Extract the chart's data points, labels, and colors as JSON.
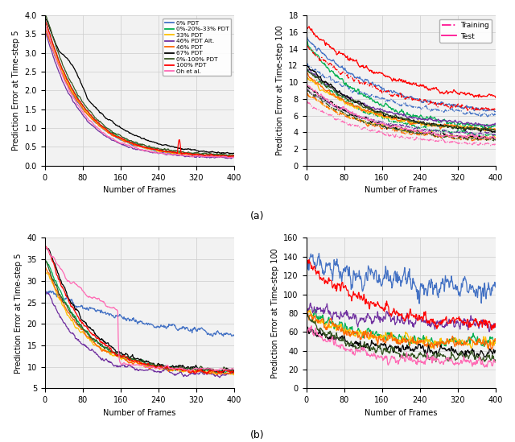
{
  "legend_labels": [
    "0% PDT",
    "0%-20%-33% PDT",
    "33% PDT",
    "46% PDT Alt.",
    "46% PDT",
    "67% PDT",
    "0%-100% PDT",
    "100% PDT",
    "Oh et al."
  ],
  "legend_colors": [
    "#4472C4",
    "#00B050",
    "#FFC000",
    "#7030A0",
    "#FF6600",
    "#000000",
    "#375623",
    "#FF0000",
    "#FF69B4"
  ],
  "top_right_legend": [
    "Training",
    "Test"
  ],
  "xlabel": "Number of Frames",
  "ylabel_top5": "Prediction Error at Time-step 5",
  "ylabel_top100": "Prediction Error at Time-step 100",
  "label_a": "(a)",
  "label_b": "(b)"
}
